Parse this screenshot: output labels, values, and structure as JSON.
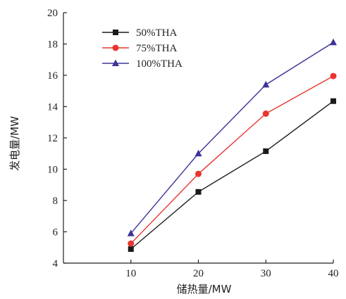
{
  "chart_data": {
    "type": "line",
    "title": "",
    "xlabel": "储热量/MW",
    "ylabel": "发电量/MW",
    "x": [
      10,
      20,
      30,
      40
    ],
    "xticks": [
      "10",
      "20",
      "30",
      "40"
    ],
    "xlim": [
      0,
      40
    ],
    "yticks": [
      "4",
      "6",
      "8",
      "10",
      "12",
      "14",
      "16",
      "18",
      "20"
    ],
    "ylim": [
      4,
      20
    ],
    "grid": false,
    "legend_position": "top-left",
    "series": [
      {
        "name": "50%THA",
        "color": "#1a1a1a",
        "marker": "square",
        "values": [
          4.9,
          8.55,
          11.15,
          14.35
        ]
      },
      {
        "name": "75%THA",
        "color": "#e8352f",
        "marker": "circle",
        "values": [
          5.25,
          9.7,
          13.55,
          15.95
        ]
      },
      {
        "name": "100%THA",
        "color": "#3d3399",
        "marker": "triangle",
        "values": [
          5.9,
          11.0,
          15.4,
          18.1
        ]
      }
    ]
  }
}
